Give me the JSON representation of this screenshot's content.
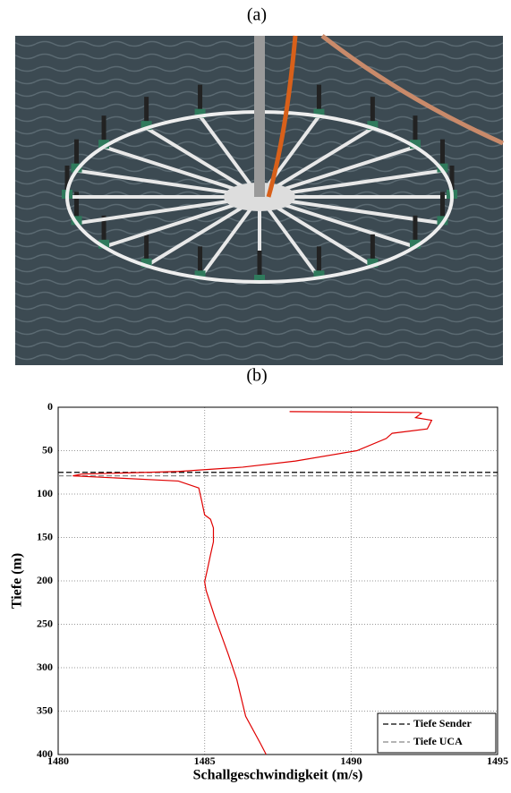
{
  "panels": {
    "a": "(a)",
    "b": "(b)"
  },
  "chart_data": {
    "type": "line",
    "xlabel": "Schallgeschwindigkeit (m/s)",
    "ylabel": "Tiefe (m)",
    "x": [
      1487.9,
      1492.3,
      1492.4,
      1492.2,
      1492.75,
      1492.6,
      1491.4,
      1491.2,
      1490.2,
      1488.1,
      1486.3,
      1484.1,
      1480.8,
      1480.5,
      1484.1,
      1484.8,
      1484.9,
      1485.0,
      1485.2,
      1485.3,
      1485.3,
      1485.2,
      1485.1,
      1485.0,
      1485.05,
      1485.35,
      1485.8,
      1486.1,
      1486.4,
      1486.9,
      1487.1
    ],
    "y": [
      5,
      6,
      7,
      12,
      15,
      25,
      30,
      36,
      50,
      62,
      69,
      74,
      77,
      79,
      85,
      93,
      108,
      124,
      129,
      139,
      155,
      170,
      186,
      201,
      211,
      242,
      284,
      314,
      356,
      387,
      400
    ],
    "color": "#e00000",
    "xlim": [
      1480,
      1495
    ],
    "xticks": [
      1480,
      1485,
      1490,
      1495
    ],
    "ylim": [
      400,
      0
    ],
    "yticks": [
      0,
      50,
      100,
      150,
      200,
      250,
      300,
      350,
      400
    ],
    "grid": true,
    "legend": "lower right",
    "hlines": [
      {
        "name": "Tiefe Sender",
        "value": 75,
        "color": "#000000"
      },
      {
        "name": "Tiefe UCA",
        "value": 79,
        "color": "#888888"
      }
    ]
  }
}
